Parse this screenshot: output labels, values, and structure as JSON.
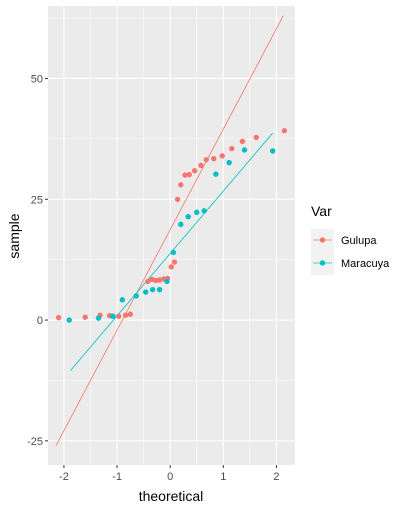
{
  "chart_data": {
    "type": "scatter",
    "subtype": "qq-plot",
    "title": "",
    "xlabel": "theoretical",
    "ylabel": "sample",
    "xlim": [
      -2.3,
      2.35
    ],
    "ylim": [
      -30,
      65
    ],
    "x_ticks": [
      -2,
      -1,
      0,
      1,
      2
    ],
    "y_ticks": [
      -25,
      0,
      25,
      50
    ],
    "x_tick_labels": [
      "-2",
      "-1",
      "0",
      "1",
      "2"
    ],
    "y_tick_labels": [
      "-25",
      "0",
      "25",
      "50"
    ],
    "grid": true,
    "panel_background": "#ebebeb",
    "grid_color": "#ffffff",
    "legend": {
      "title": "Var",
      "position": "right"
    },
    "series": [
      {
        "name": "Gulupa",
        "color": "#f8766d",
        "points": [
          [
            -2.1,
            0.5
          ],
          [
            -1.6,
            0.6
          ],
          [
            -1.32,
            1.0
          ],
          [
            -1.14,
            0.9
          ],
          [
            -0.97,
            0.8
          ],
          [
            -0.84,
            1.0
          ],
          [
            -0.75,
            1.2
          ],
          [
            -0.42,
            8.0
          ],
          [
            -0.34,
            8.4
          ],
          [
            -0.27,
            8.2
          ],
          [
            -0.2,
            8.3
          ],
          [
            -0.12,
            8.5
          ],
          [
            -0.05,
            8.6
          ],
          [
            0.02,
            11.0
          ],
          [
            0.08,
            12.0
          ],
          [
            0.14,
            25.0
          ],
          [
            0.2,
            28.0
          ],
          [
            0.28,
            30.0
          ],
          [
            0.36,
            30.1
          ],
          [
            0.46,
            30.9
          ],
          [
            0.58,
            32.0
          ],
          [
            0.68,
            33.2
          ],
          [
            0.82,
            33.4
          ],
          [
            0.98,
            34.0
          ],
          [
            1.16,
            35.5
          ],
          [
            1.36,
            37.0
          ],
          [
            1.62,
            37.8
          ],
          [
            2.15,
            39.2
          ]
        ],
        "line": [
          [
            -2.15,
            -26.0
          ],
          [
            2.13,
            63.0
          ]
        ]
      },
      {
        "name": "Maracuya",
        "color": "#00bfc4",
        "points": [
          [
            -1.9,
            0.0
          ],
          [
            -1.35,
            0.4
          ],
          [
            -1.08,
            0.8
          ],
          [
            -0.9,
            4.2
          ],
          [
            -0.64,
            5.0
          ],
          [
            -0.46,
            5.8
          ],
          [
            -0.33,
            6.3
          ],
          [
            -0.2,
            6.3
          ],
          [
            -0.06,
            8.0
          ],
          [
            0.06,
            14.0
          ],
          [
            0.2,
            19.8
          ],
          [
            0.34,
            21.4
          ],
          [
            0.5,
            22.3
          ],
          [
            0.64,
            22.6
          ],
          [
            0.86,
            30.2
          ],
          [
            1.11,
            32.6
          ],
          [
            1.4,
            35.2
          ],
          [
            1.93,
            35.0
          ]
        ],
        "line": [
          [
            -1.88,
            -10.5
          ],
          [
            1.93,
            38.7
          ]
        ]
      }
    ]
  }
}
